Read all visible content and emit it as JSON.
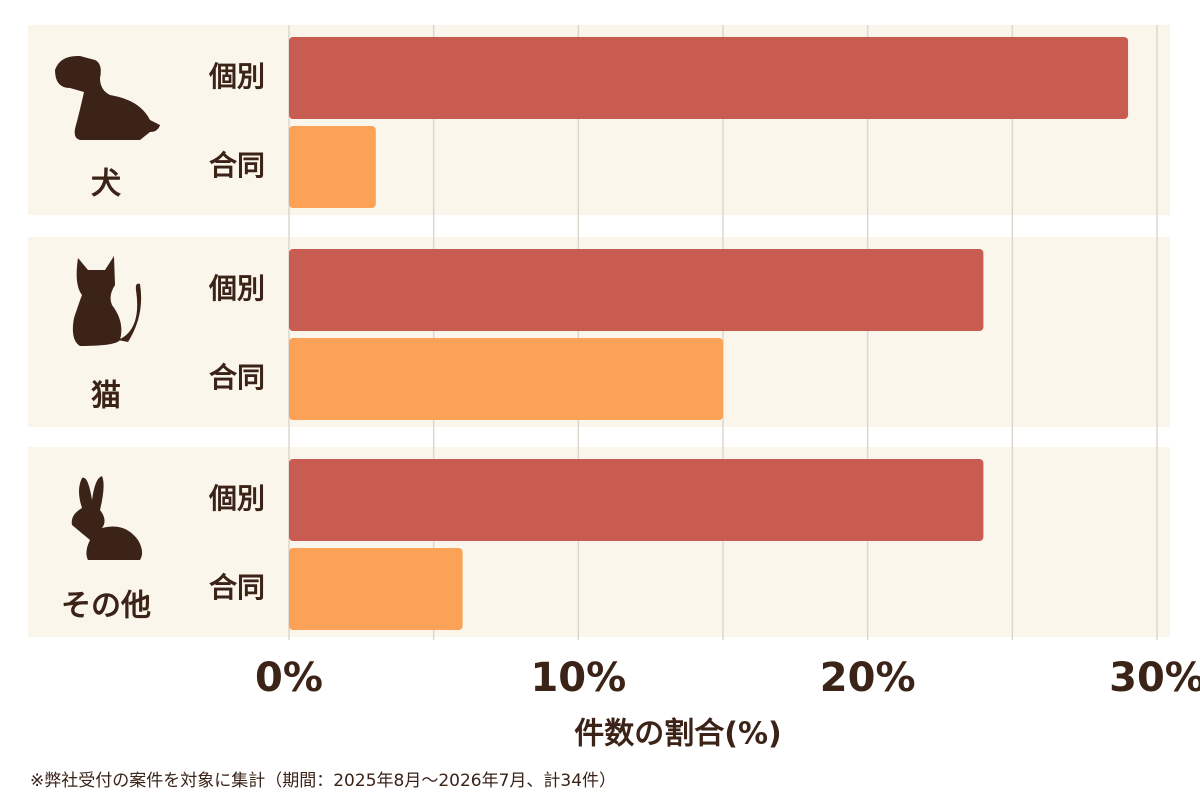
{
  "chart_data": {
    "type": "grouped-hbar",
    "categories": [
      "犬",
      "猫",
      "その他"
    ],
    "series": [
      {
        "name": "個別",
        "color": "#c85c50",
        "values": [
          29,
          24,
          24
        ]
      },
      {
        "name": "合同",
        "color": "#fba257",
        "values": [
          3,
          15,
          6
        ]
      }
    ],
    "xlim": [
      0,
      30
    ],
    "xticks": [
      {
        "value": 0,
        "label": "0%"
      },
      {
        "value": 10,
        "label": "10%"
      },
      {
        "value": 20,
        "label": "20%"
      },
      {
        "value": 30,
        "label": "30%"
      }
    ],
    "gridlines": [
      0,
      5,
      10,
      15,
      20,
      25,
      30
    ],
    "xlabel": "件数の割合(%)",
    "note": "※弊社受付の案件を対象に集計（期間：2025年8月～2026年7月、計34件）"
  }
}
